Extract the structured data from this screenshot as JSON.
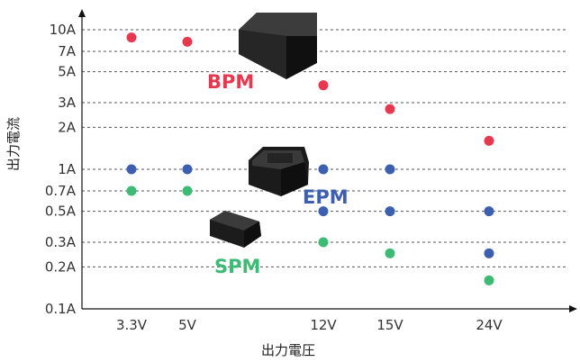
{
  "chart_data": {
    "type": "scatter",
    "xlabel": "出力電圧",
    "ylabel": "出力電流",
    "y_scale": "log",
    "ylim": [
      0.1,
      10
    ],
    "grid": true,
    "legend": "none",
    "x_categories": [
      "3.3V",
      "5V",
      "12V",
      "15V",
      "24V"
    ],
    "y_ticks": [
      {
        "value": 10,
        "label": "10A"
      },
      {
        "value": 7,
        "label": "7A"
      },
      {
        "value": 5,
        "label": "5A"
      },
      {
        "value": 3,
        "label": "3A"
      },
      {
        "value": 2,
        "label": "2A"
      },
      {
        "value": 1,
        "label": "1A"
      },
      {
        "value": 0.7,
        "label": "0.7A"
      },
      {
        "value": 0.5,
        "label": "0.5A"
      },
      {
        "value": 0.3,
        "label": "0.3A"
      },
      {
        "value": 0.2,
        "label": "0.2A"
      },
      {
        "value": 0.1,
        "label": "0.1A"
      }
    ],
    "series": [
      {
        "name": "BPM",
        "color": "#e8384f",
        "points": [
          {
            "x": "3.3V",
            "y": 8.8
          },
          {
            "x": "5V",
            "y": 8.2
          },
          {
            "x": "12V",
            "y": 4.0
          },
          {
            "x": "15V",
            "y": 2.7
          },
          {
            "x": "24V",
            "y": 1.6
          }
        ]
      },
      {
        "name": "EPM",
        "color": "#3d5fb0",
        "points": [
          {
            "x": "3.3V",
            "y": 1.0
          },
          {
            "x": "5V",
            "y": 1.0
          },
          {
            "x": "12V",
            "y": 1.0
          },
          {
            "x": "15V",
            "y": 1.0
          },
          {
            "x": "12V",
            "y": 0.5
          },
          {
            "x": "15V",
            "y": 0.5
          },
          {
            "x": "24V",
            "y": 0.5
          },
          {
            "x": "24V",
            "y": 0.25
          }
        ]
      },
      {
        "name": "SPM",
        "color": "#3dbb75",
        "points": [
          {
            "x": "3.3V",
            "y": 0.7
          },
          {
            "x": "5V",
            "y": 0.7
          },
          {
            "x": "12V",
            "y": 0.3
          },
          {
            "x": "15V",
            "y": 0.25
          },
          {
            "x": "24V",
            "y": 0.16
          }
        ]
      }
    ],
    "product_images": [
      "bpm-module-image",
      "epm-module-image",
      "spm-module-image"
    ]
  }
}
